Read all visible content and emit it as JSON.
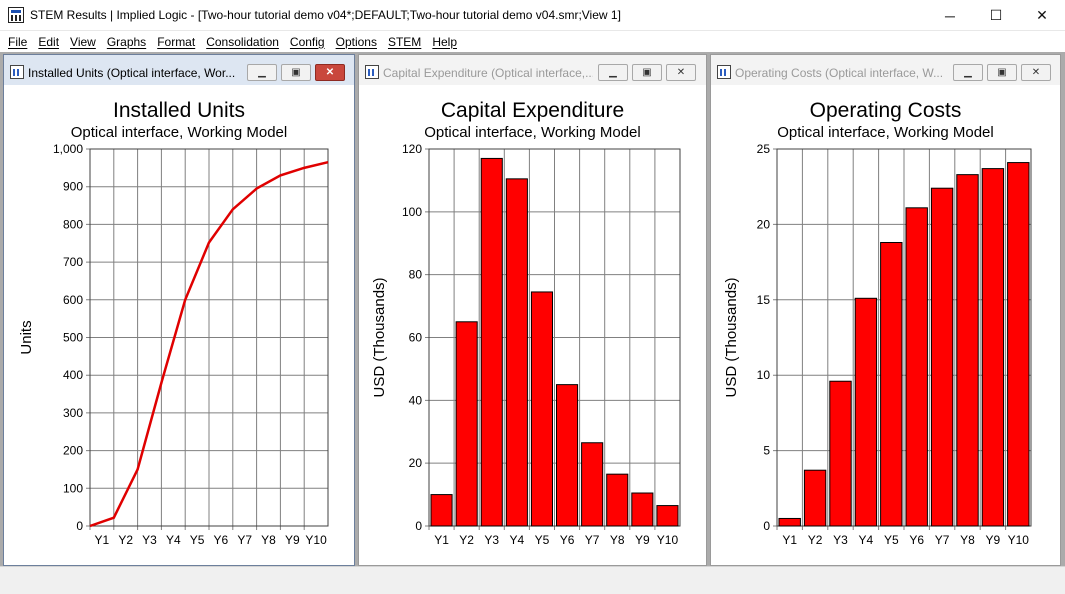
{
  "app": {
    "title": "STEM Results | Implied Logic - [Two-hour tutorial demo v04*;DEFAULT;Two-hour tutorial demo v04.smr;View 1]",
    "controls": {
      "minimize": "─",
      "maximize": "☐",
      "close": "✕"
    }
  },
  "menu": [
    "File",
    "Edit",
    "View",
    "Graphs",
    "Format",
    "Consolidation",
    "Config",
    "Options",
    "STEM",
    "Help"
  ],
  "colors": {
    "bar_fill": "#ff0000",
    "line_color": "#e00000",
    "grid": "#808080",
    "active_title": "#dde6f2",
    "close_active": "#c9473d"
  },
  "windows": [
    {
      "title": "Installed Units (Optical interface, Wor...",
      "active": true,
      "icon": "chart-window-icon"
    },
    {
      "title": "Capital Expenditure (Optical interface,...",
      "active": false,
      "icon": "chart-window-icon"
    },
    {
      "title": "Operating Costs (Optical interface, W...",
      "active": false,
      "icon": "chart-window-icon"
    }
  ],
  "chart_data": [
    {
      "type": "line",
      "title": "Installed Units",
      "subtitle": "Optical interface, Working Model",
      "ylabel": "Units",
      "categories": [
        "Y1",
        "Y2",
        "Y3",
        "Y4",
        "Y5",
        "Y6",
        "Y7",
        "Y8",
        "Y9",
        "Y10"
      ],
      "x_start_value": 0,
      "values": [
        22,
        150,
        380,
        600,
        752,
        840,
        895,
        930,
        950,
        965
      ],
      "ylim": [
        0,
        1000
      ],
      "yticks": [
        0,
        100,
        200,
        300,
        400,
        500,
        600,
        700,
        800,
        900,
        1000
      ],
      "ytick_labels": [
        "0",
        "100",
        "200",
        "300",
        "400",
        "500",
        "600",
        "700",
        "800",
        "900",
        "1,000"
      ],
      "grid": true
    },
    {
      "type": "bar",
      "title": "Capital Expenditure",
      "subtitle": "Optical interface, Working Model",
      "ylabel": "USD  (Thousands)",
      "categories": [
        "Y1",
        "Y2",
        "Y3",
        "Y4",
        "Y5",
        "Y6",
        "Y7",
        "Y8",
        "Y9",
        "Y10"
      ],
      "values": [
        10,
        65,
        117,
        110.5,
        74.5,
        45,
        26.5,
        16.5,
        10.5,
        6.5
      ],
      "ylim": [
        0,
        120
      ],
      "yticks": [
        0,
        20,
        40,
        60,
        80,
        100,
        120
      ],
      "ytick_labels": [
        "0",
        "20",
        "40",
        "60",
        "80",
        "100",
        "120"
      ],
      "grid": true
    },
    {
      "type": "bar",
      "title": "Operating Costs",
      "subtitle": "Optical interface, Working Model",
      "ylabel": "USD  (Thousands)",
      "categories": [
        "Y1",
        "Y2",
        "Y3",
        "Y4",
        "Y5",
        "Y6",
        "Y7",
        "Y8",
        "Y9",
        "Y10"
      ],
      "values": [
        0.5,
        3.7,
        9.6,
        15.1,
        18.8,
        21.1,
        22.4,
        23.3,
        23.7,
        24.1
      ],
      "ylim": [
        0,
        25
      ],
      "yticks": [
        0,
        5,
        10,
        15,
        20,
        25
      ],
      "ytick_labels": [
        "0",
        "5",
        "10",
        "15",
        "20",
        "25"
      ],
      "grid": true
    }
  ]
}
